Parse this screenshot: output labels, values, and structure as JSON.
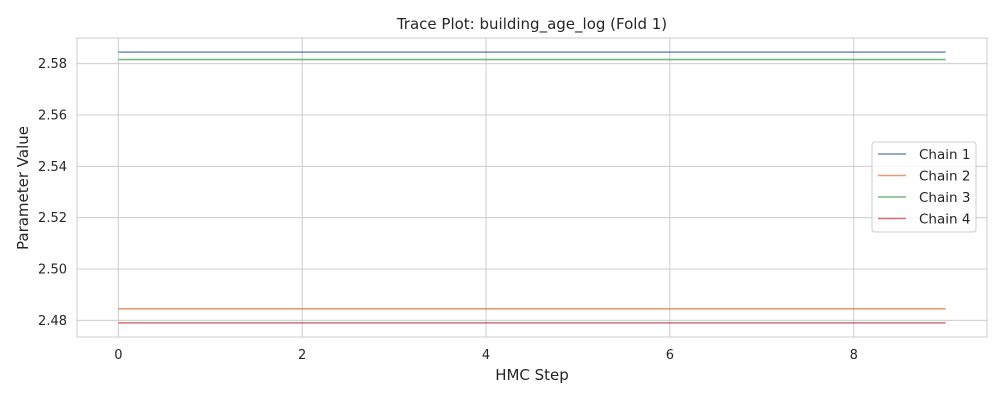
{
  "chart_data": {
    "type": "line",
    "title": "Trace Plot: building_age_log (Fold 1)",
    "xlabel": "HMC Step",
    "ylabel": "Parameter Value",
    "x": [
      0,
      1,
      2,
      3,
      4,
      5,
      6,
      7,
      8,
      9
    ],
    "xlim": [
      -0.45,
      9.45
    ],
    "ylim": [
      2.4735,
      2.59
    ],
    "x_ticks": [
      0,
      2,
      4,
      6,
      8
    ],
    "y_ticks": [
      2.48,
      2.5,
      2.52,
      2.54,
      2.56,
      2.58
    ],
    "x_tick_labels": [
      "0",
      "2",
      "4",
      "6",
      "8"
    ],
    "y_tick_labels": [
      "2.48",
      "2.50",
      "2.52",
      "2.54",
      "2.56",
      "2.58"
    ],
    "grid": true,
    "legend_position": "center-right",
    "series": [
      {
        "name": "Chain 1",
        "color": "#4c72b0",
        "values": [
          2.5845,
          2.5845,
          2.5845,
          2.5845,
          2.5845,
          2.5845,
          2.5845,
          2.5845,
          2.5845,
          2.5845
        ]
      },
      {
        "name": "Chain 2",
        "color": "#dd8452",
        "values": [
          2.4845,
          2.4845,
          2.4845,
          2.4845,
          2.4845,
          2.4845,
          2.4845,
          2.4845,
          2.4845,
          2.4845
        ]
      },
      {
        "name": "Chain 3",
        "color": "#55a868",
        "values": [
          2.5816,
          2.5816,
          2.5816,
          2.5816,
          2.5816,
          2.5816,
          2.5816,
          2.5816,
          2.5816,
          2.5816
        ]
      },
      {
        "name": "Chain 4",
        "color": "#c44e52",
        "values": [
          2.479,
          2.479,
          2.479,
          2.479,
          2.479,
          2.479,
          2.479,
          2.479,
          2.479,
          2.479
        ]
      }
    ]
  }
}
